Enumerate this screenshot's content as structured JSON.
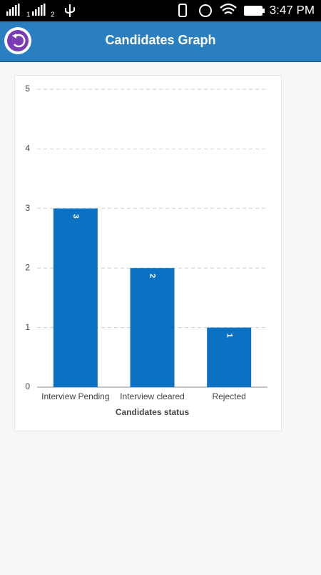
{
  "status_bar": {
    "sim_labels": [
      "1",
      "2"
    ],
    "time": "3:47 PM"
  },
  "header": {
    "title": "Candidates Graph"
  },
  "chart_data": {
    "type": "bar",
    "categories": [
      "Interview Pending",
      "Interview cleared",
      "Rejected"
    ],
    "values": [
      3,
      2,
      1
    ],
    "color": "#0b72c3",
    "x_label": "Candidates status",
    "ylim": [
      0,
      5
    ],
    "yticks": [
      0,
      1,
      2,
      3,
      4,
      5
    ],
    "grid": true
  }
}
